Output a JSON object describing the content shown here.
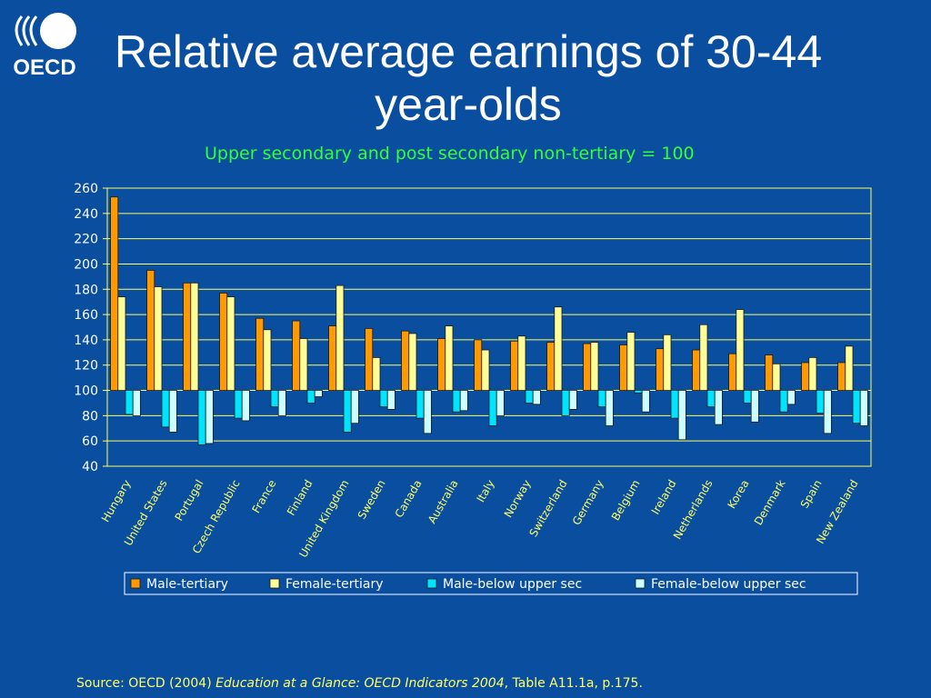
{
  "slide": {
    "title": "Relative average earnings of 30-44 year-olds",
    "logo_text": "OECD",
    "source_prefix": "Source: OECD (2004) ",
    "source_title": "Education at a Glance: OECD Indicators 2004",
    "source_suffix": ", Table A11.1a,  p.175."
  },
  "colors": {
    "background": "#0a4ea0",
    "plot_background": "#0a4ea0",
    "plot_border": "#ffff66",
    "grid": "#ffff66",
    "axis_text": "#ffffff",
    "category_text": "#ffff66",
    "subtitle": "#33ff33"
  },
  "chart_data": {
    "type": "bar",
    "title": "",
    "subtitle": "Upper secondary and post secondary non-tertiary = 100",
    "baseline": 100,
    "ylim": [
      40,
      260
    ],
    "yticks": [
      40,
      60,
      80,
      100,
      120,
      140,
      160,
      180,
      200,
      220,
      240,
      260
    ],
    "grid": true,
    "legend_position": "bottom",
    "categories": [
      "Hungary",
      "United States",
      "Portugal",
      "Czech Republic",
      "France",
      "Finland",
      "United Kingdom",
      "Sweden",
      "Canada",
      "Australia",
      "Italy",
      "Norway",
      "Switzerland",
      "Germany",
      "Belgium",
      "Ireland",
      "Netherlands",
      "Korea",
      "Denmark",
      "Spain",
      "New Zealand"
    ],
    "series": [
      {
        "name": "Male-tertiary",
        "color": "#ff9900",
        "values": [
          253,
          195,
          185,
          177,
          157,
          155,
          151,
          149,
          147,
          141,
          140,
          139,
          138,
          137,
          136,
          133,
          132,
          129,
          128,
          122,
          122
        ]
      },
      {
        "name": "Female-tertiary",
        "color": "#ffff99",
        "values": [
          174,
          182,
          185,
          174,
          148,
          141,
          183,
          126,
          145,
          151,
          132,
          143,
          166,
          138,
          146,
          144,
          152,
          164,
          121,
          126,
          135
        ]
      },
      {
        "name": "Male-below upper sec",
        "color": "#00e5ff",
        "values": [
          81,
          71,
          57,
          78,
          87,
          90,
          67,
          87,
          78,
          83,
          72,
          90,
          80,
          87,
          98,
          78,
          87,
          90,
          83,
          82,
          74
        ]
      },
      {
        "name": "Female-below upper sec",
        "color": "#ccffff",
        "values": [
          80,
          67,
          58,
          76,
          80,
          95,
          74,
          85,
          66,
          84,
          80,
          89,
          85,
          72,
          83,
          61,
          73,
          75,
          89,
          66,
          72
        ]
      }
    ]
  }
}
